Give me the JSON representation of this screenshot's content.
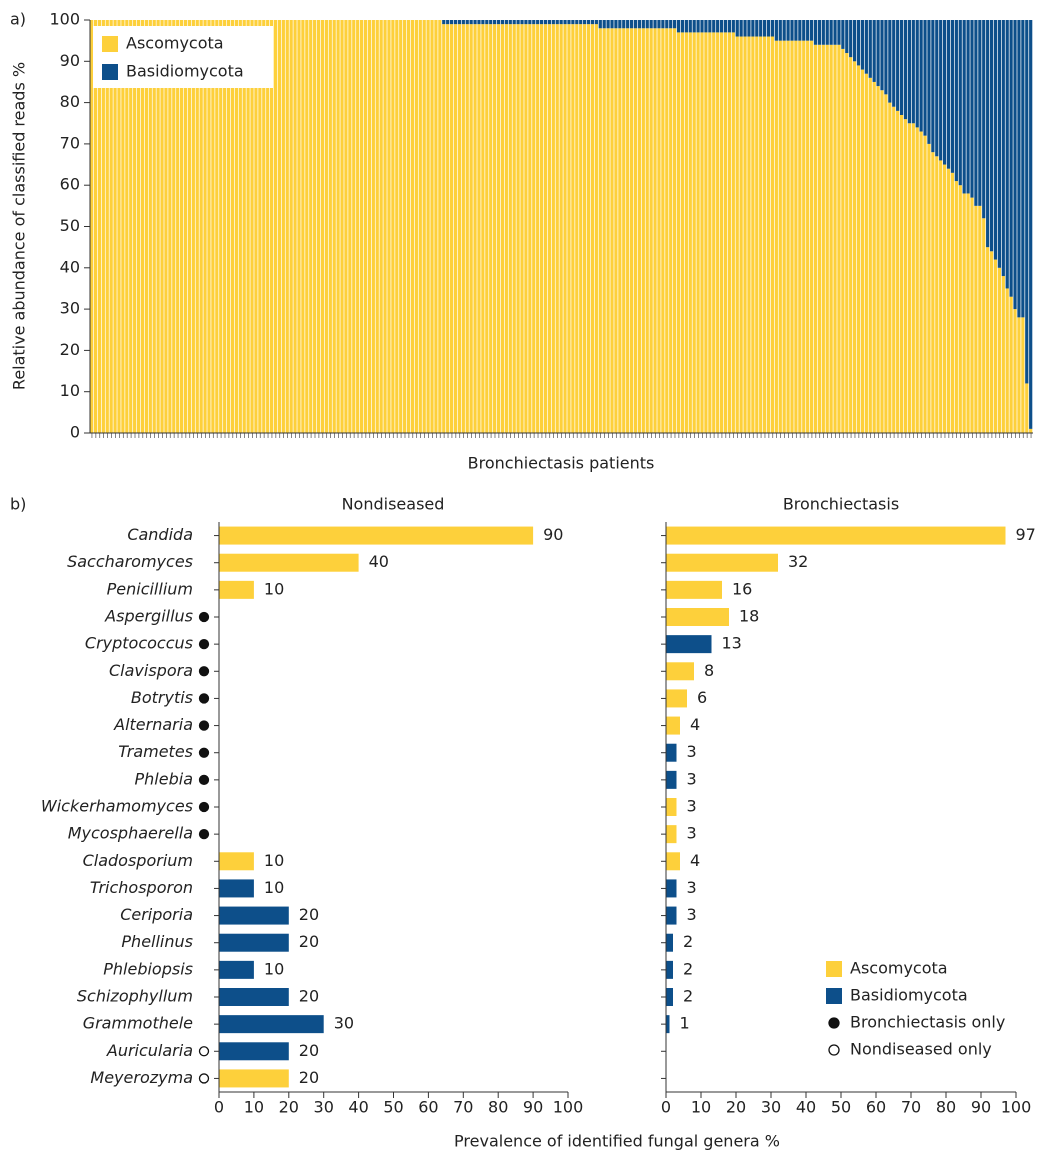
{
  "chart_data": [
    {
      "type": "stacked_bar",
      "panel_label": "a)",
      "ylabel": "Relative abundance of classified reads %",
      "xlabel": "Bronchiectasis patients",
      "ylim": [
        0,
        100
      ],
      "yticks": [
        0,
        10,
        20,
        30,
        40,
        50,
        60,
        70,
        80,
        90,
        100
      ],
      "legend": "upper left",
      "series": [
        {
          "name": "Ascomycota",
          "color": "#fdd03b",
          "values": [
            100,
            100,
            100,
            100,
            100,
            100,
            100,
            100,
            100,
            100,
            100,
            100,
            100,
            100,
            100,
            100,
            100,
            100,
            100,
            100,
            100,
            100,
            100,
            100,
            100,
            100,
            100,
            100,
            100,
            100,
            100,
            100,
            100,
            100,
            100,
            100,
            100,
            100,
            100,
            100,
            100,
            100,
            100,
            100,
            100,
            100,
            100,
            100,
            100,
            100,
            100,
            100,
            100,
            100,
            100,
            100,
            100,
            100,
            100,
            100,
            100,
            100,
            100,
            100,
            100,
            100,
            100,
            100,
            100,
            100,
            100,
            100,
            100,
            100,
            100,
            100,
            100,
            100,
            100,
            100,
            100,
            100,
            100,
            100,
            100,
            100,
            100,
            100,
            100,
            100,
            99,
            99,
            99,
            99,
            99,
            99,
            99,
            99,
            99,
            99,
            99,
            99,
            99,
            99,
            99,
            99,
            99,
            99,
            99,
            99,
            99,
            99,
            99,
            99,
            99,
            99,
            99,
            99,
            99,
            99,
            99,
            99,
            99,
            99,
            99,
            99,
            99,
            99,
            99,
            99,
            98,
            98,
            98,
            98,
            98,
            98,
            98,
            98,
            98,
            98,
            98,
            98,
            98,
            98,
            98,
            98,
            98,
            98,
            98,
            98,
            97,
            97,
            97,
            97,
            97,
            97,
            97,
            97,
            97,
            97,
            97,
            97,
            97,
            97,
            97,
            96,
            96,
            96,
            96,
            96,
            96,
            96,
            96,
            96,
            96,
            95,
            95,
            95,
            95,
            95,
            95,
            95,
            95,
            95,
            95,
            94,
            94,
            94,
            94,
            94,
            94,
            94,
            93,
            92,
            91,
            90,
            89,
            88,
            87,
            86,
            85,
            84,
            83,
            82,
            80,
            79,
            78,
            77,
            76,
            75,
            75,
            74,
            73,
            72,
            70,
            68,
            67,
            66,
            65,
            64,
            63,
            61,
            60,
            58,
            58,
            57,
            55,
            55,
            52,
            45,
            44,
            42,
            40,
            38,
            35,
            33,
            30,
            28,
            28,
            12,
            1
          ]
        },
        {
          "name": "Basidiomycota",
          "color": "#0d4f8a",
          "values": [
            0,
            0,
            0,
            0,
            0,
            0,
            0,
            0,
            0,
            0,
            0,
            0,
            0,
            0,
            0,
            0,
            0,
            0,
            0,
            0,
            0,
            0,
            0,
            0,
            0,
            0,
            0,
            0,
            0,
            0,
            0,
            0,
            0,
            0,
            0,
            0,
            0,
            0,
            0,
            0,
            0,
            0,
            0,
            0,
            0,
            0,
            0,
            0,
            0,
            0,
            0,
            0,
            0,
            0,
            0,
            0,
            0,
            0,
            0,
            0,
            0,
            0,
            0,
            0,
            0,
            0,
            0,
            0,
            0,
            0,
            0,
            0,
            0,
            0,
            0,
            0,
            0,
            0,
            0,
            0,
            0,
            0,
            0,
            0,
            0,
            0,
            0,
            0,
            0,
            0,
            1,
            1,
            1,
            1,
            1,
            1,
            1,
            1,
            1,
            1,
            1,
            1,
            1,
            1,
            1,
            1,
            1,
            1,
            1,
            1,
            1,
            1,
            1,
            1,
            1,
            1,
            1,
            1,
            1,
            1,
            1,
            1,
            1,
            1,
            1,
            1,
            1,
            1,
            1,
            1,
            2,
            2,
            2,
            2,
            2,
            2,
            2,
            2,
            2,
            2,
            2,
            2,
            2,
            2,
            2,
            2,
            2,
            2,
            2,
            2,
            3,
            3,
            3,
            3,
            3,
            3,
            3,
            3,
            3,
            3,
            3,
            3,
            3,
            3,
            3,
            4,
            4,
            4,
            4,
            4,
            4,
            4,
            4,
            4,
            4,
            5,
            5,
            5,
            5,
            5,
            5,
            5,
            5,
            5,
            5,
            6,
            6,
            6,
            6,
            6,
            6,
            6,
            7,
            8,
            9,
            10,
            11,
            12,
            13,
            14,
            15,
            16,
            17,
            18,
            20,
            21,
            22,
            23,
            24,
            25,
            25,
            26,
            27,
            28,
            30,
            32,
            33,
            34,
            35,
            36,
            37,
            39,
            40,
            42,
            42,
            43,
            45,
            45,
            48,
            55,
            56,
            58,
            60,
            62,
            65,
            67,
            70,
            72,
            72,
            88,
            99
          ]
        }
      ]
    },
    {
      "type": "barh",
      "panel_label": "b)",
      "title": "Nondiseased",
      "xlabel": "Prevalence of identified fungal genera %",
      "categories": [
        "Candida",
        "Saccharomyces",
        "Penicillium",
        "Aspergillus",
        "Cryptococcus",
        "Clavispora",
        "Botrytis",
        "Alternaria",
        "Trametes",
        "Phlebia",
        "Wickerhamomyces",
        "Mycosphaerella",
        "Cladosporium",
        "Trichosporon",
        "Ceriporia",
        "Phellinus",
        "Phlebiopsis",
        "Schizophyllum",
        "Grammothele",
        "Auricularia",
        "Meyerozyma"
      ],
      "markers": [
        null,
        null,
        null,
        "filled",
        "filled",
        "filled",
        "filled",
        "filled",
        "filled",
        "filled",
        "filled",
        "filled",
        null,
        null,
        null,
        null,
        null,
        null,
        null,
        "open",
        "open"
      ],
      "values": [
        90,
        40,
        10,
        null,
        null,
        null,
        null,
        null,
        null,
        null,
        null,
        null,
        10,
        10,
        20,
        20,
        10,
        20,
        30,
        20,
        20
      ],
      "colors": [
        "#fdd03b",
        "#fdd03b",
        "#fdd03b",
        "#fdd03b",
        "#0d4f8a",
        "#fdd03b",
        "#fdd03b",
        "#fdd03b",
        "#0d4f8a",
        "#0d4f8a",
        "#fdd03b",
        "#fdd03b",
        "#fdd03b",
        "#0d4f8a",
        "#0d4f8a",
        "#0d4f8a",
        "#0d4f8a",
        "#0d4f8a",
        "#0d4f8a",
        "#0d4f8a",
        "#fdd03b"
      ],
      "xlim": [
        0,
        100
      ],
      "xticks": [
        0,
        10,
        20,
        30,
        40,
        50,
        60,
        70,
        80,
        90,
        100
      ]
    },
    {
      "type": "barh",
      "title": "Bronchiectasis",
      "values": [
        97,
        32,
        16,
        18,
        13,
        8,
        6,
        4,
        3,
        3,
        3,
        3,
        4,
        3,
        3,
        2,
        2,
        2,
        1,
        null,
        null
      ],
      "colors": [
        "#fdd03b",
        "#fdd03b",
        "#fdd03b",
        "#fdd03b",
        "#0d4f8a",
        "#fdd03b",
        "#fdd03b",
        "#fdd03b",
        "#0d4f8a",
        "#0d4f8a",
        "#fdd03b",
        "#fdd03b",
        "#fdd03b",
        "#0d4f8a",
        "#0d4f8a",
        "#0d4f8a",
        "#0d4f8a",
        "#0d4f8a",
        "#0d4f8a",
        "#0d4f8a",
        "#fdd03b"
      ],
      "xlim": [
        0,
        100
      ],
      "xticks": [
        0,
        10,
        20,
        30,
        40,
        50,
        60,
        70,
        80,
        90,
        100
      ],
      "legend": "lower right",
      "legend_entries": [
        {
          "label": "Ascomycota",
          "color": "#fdd03b"
        },
        {
          "label": "Basidiomycota",
          "color": "#0d4f8a"
        },
        {
          "label": "Bronchiectasis only",
          "marker": "filled"
        },
        {
          "label": "Nondiseased only",
          "marker": "open"
        }
      ]
    }
  ]
}
